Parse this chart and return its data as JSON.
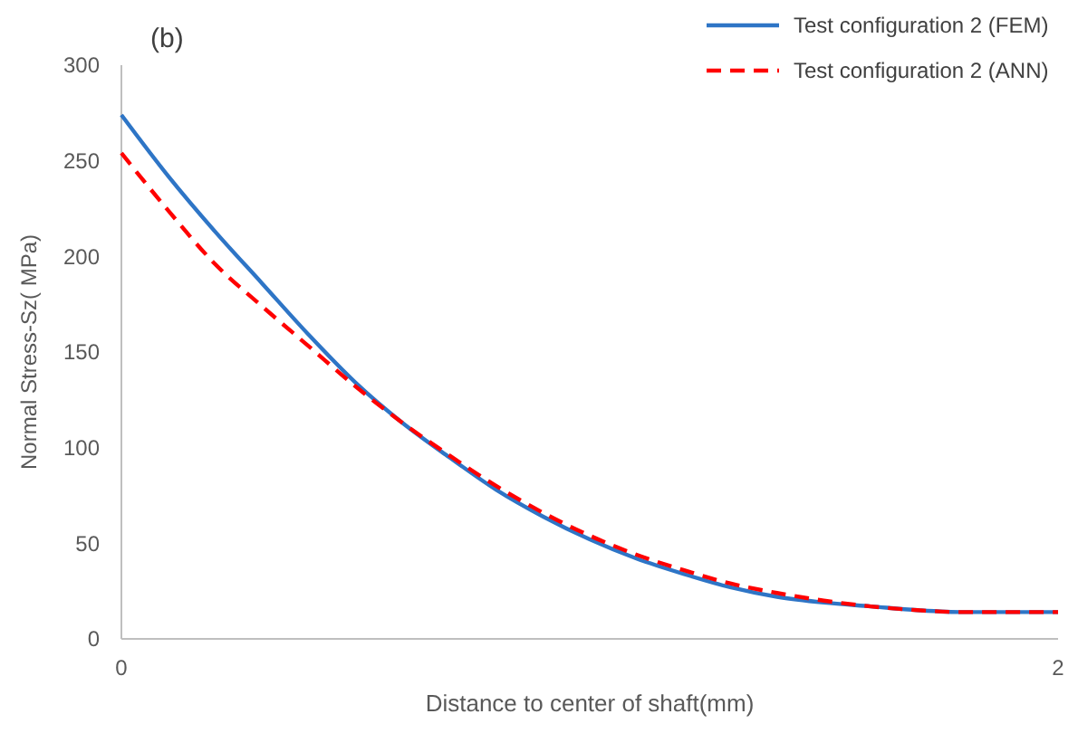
{
  "chart_data": {
    "type": "line",
    "title": "(b)",
    "xlabel": "Distance to center of shaft(mm)",
    "ylabel": "Normal Stress-Sz( MPa)",
    "x": [
      0,
      0.1,
      0.2,
      0.3,
      0.4,
      0.5,
      0.6,
      0.7,
      0.8,
      0.9,
      1.0,
      1.1,
      1.2,
      1.3,
      1.4,
      1.5,
      1.6,
      1.7,
      1.8,
      1.9,
      2
    ],
    "series": [
      {
        "name": "Test configuration 2 (FEM)",
        "color": "#2e75c6",
        "line_style": "solid",
        "values": [
          274,
          242,
          213,
          186,
          159,
          134,
          113,
          95,
          78,
          64,
          52,
          42,
          34,
          27,
          22,
          19,
          17,
          15,
          14,
          14,
          14
        ]
      },
      {
        "name": "Test configuration 2 (ANN)",
        "color": "#ff0000",
        "line_style": "dashed",
        "values": [
          254,
          224,
          196,
          174,
          153,
          132,
          113,
          96,
          80,
          66,
          54,
          44,
          36,
          29,
          24,
          20,
          17,
          15,
          14,
          14,
          14
        ]
      }
    ],
    "xlim": [
      0,
      2
    ],
    "xticks": [
      0,
      2
    ],
    "ylim": [
      0,
      300
    ],
    "yticks": [
      0,
      50,
      100,
      150,
      200,
      250,
      300
    ],
    "grid": false,
    "legend": "top right",
    "marker": "none"
  }
}
